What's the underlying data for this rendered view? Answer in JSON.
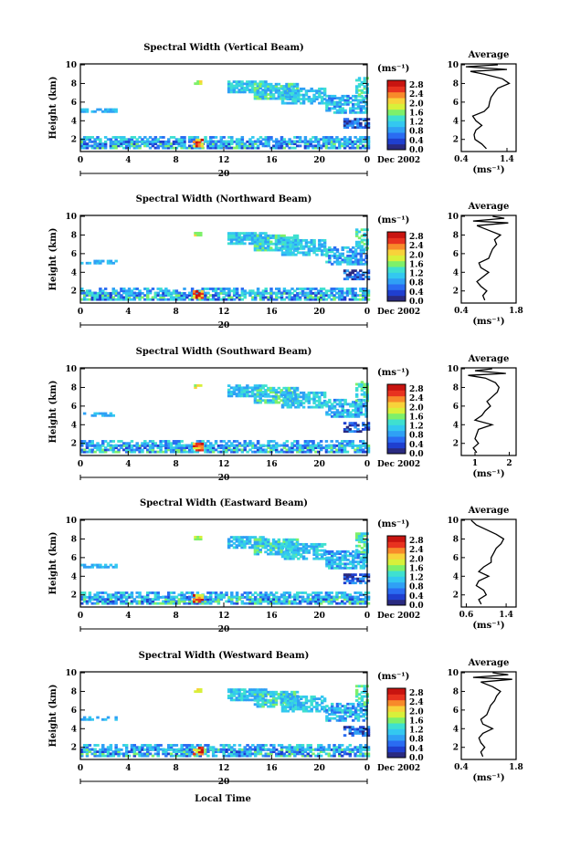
{
  "figure": {
    "xlabel": "Local Time",
    "ylabel": "Height (km)",
    "units_label": "(ms⁻¹)",
    "date_label": "Dec 2002",
    "date_day": "20",
    "avg_title": "Average",
    "avg_xlabel": "(ms⁻¹)"
  },
  "colors": {
    "scale": [
      "#2a2a80",
      "#1f3fcf",
      "#2a6cf2",
      "#2fa0f5",
      "#33c8f0",
      "#3fe0d0",
      "#7ef06a",
      "#d8f03a",
      "#f8d23a",
      "#f88a2a",
      "#e8321f",
      "#c81410"
    ]
  },
  "chart_data": [
    {
      "type": "heatmap",
      "title": "Spectral Width (Vertical Beam)",
      "x_ticks": [
        "0",
        "4",
        "8",
        "12",
        "16",
        "20",
        "0"
      ],
      "xlim": [
        0,
        24
      ],
      "y_ticks": [
        "2",
        "4",
        "6",
        "8",
        "10"
      ],
      "ylim": [
        0.7,
        10.1
      ],
      "colorbar_ticks": [
        "0.0",
        "0.4",
        "0.8",
        "1.2",
        "1.6",
        "2.0",
        "2.4",
        "2.8"
      ],
      "colorbar_range": [
        0.0,
        3.0
      ],
      "average": {
        "title": "Average",
        "x_ticks": [
          "0.4",
          "1.4"
        ],
        "xlim": [
          0.4,
          1.6
        ],
        "profile": [
          [
            1.0,
            0.95
          ],
          [
            1.5,
            0.85
          ],
          [
            2.0,
            0.7
          ],
          [
            2.5,
            0.68
          ],
          [
            3.0,
            0.72
          ],
          [
            3.5,
            0.85
          ],
          [
            4.0,
            0.72
          ],
          [
            4.5,
            0.65
          ],
          [
            5.0,
            0.9
          ],
          [
            5.5,
            1.0
          ],
          [
            6.0,
            1.02
          ],
          [
            6.5,
            1.05
          ],
          [
            7.0,
            1.12
          ],
          [
            7.5,
            1.2
          ],
          [
            8.0,
            1.45
          ],
          [
            8.5,
            1.3
          ],
          [
            9.0,
            0.9
          ],
          [
            9.3,
            0.6
          ],
          [
            9.5,
            1.4
          ],
          [
            9.8,
            0.5
          ],
          [
            10.0,
            1.2
          ]
        ]
      }
    },
    {
      "type": "heatmap",
      "title": "Spectral Width (Northward Beam)",
      "x_ticks": [
        "0",
        "4",
        "8",
        "12",
        "16",
        "20",
        "0"
      ],
      "xlim": [
        0,
        24
      ],
      "y_ticks": [
        "2",
        "4",
        "6",
        "8",
        "10"
      ],
      "ylim": [
        0.7,
        10.1
      ],
      "colorbar_ticks": [
        "0.0",
        "0.4",
        "0.8",
        "1.2",
        "1.6",
        "2.0",
        "2.4",
        "2.8"
      ],
      "colorbar_range": [
        0.0,
        3.0
      ],
      "average": {
        "title": "Average",
        "x_ticks": [
          "0.4",
          "1.8"
        ],
        "xlim": [
          0.4,
          1.8
        ],
        "profile": [
          [
            1.0,
            1.0
          ],
          [
            1.5,
            0.95
          ],
          [
            2.0,
            1.05
          ],
          [
            2.5,
            0.9
          ],
          [
            3.0,
            0.8
          ],
          [
            3.5,
            0.95
          ],
          [
            4.0,
            1.1
          ],
          [
            4.5,
            0.9
          ],
          [
            5.0,
            0.85
          ],
          [
            5.5,
            1.1
          ],
          [
            6.0,
            1.15
          ],
          [
            6.5,
            1.2
          ],
          [
            7.0,
            1.3
          ],
          [
            7.5,
            1.25
          ],
          [
            8.0,
            1.4
          ],
          [
            8.5,
            1.1
          ],
          [
            9.0,
            0.8
          ],
          [
            9.3,
            1.6
          ],
          [
            9.5,
            0.7
          ],
          [
            9.8,
            1.5
          ],
          [
            10.0,
            1.2
          ]
        ]
      }
    },
    {
      "type": "heatmap",
      "title": "Spectral Width (Southward Beam)",
      "x_ticks": [
        "0",
        "4",
        "8",
        "12",
        "16",
        "20",
        "0"
      ],
      "xlim": [
        0,
        24
      ],
      "y_ticks": [
        "2",
        "4",
        "6",
        "8",
        "10"
      ],
      "ylim": [
        0.7,
        10.1
      ],
      "colorbar_ticks": [
        "0.0",
        "0.4",
        "0.8",
        "1.2",
        "1.6",
        "2.0",
        "2.4",
        "2.8"
      ],
      "colorbar_range": [
        0.0,
        3.0
      ],
      "average": {
        "title": "Average",
        "x_ticks": [
          "1",
          "2"
        ],
        "xlim": [
          0.6,
          2.2
        ],
        "profile": [
          [
            1.0,
            1.05
          ],
          [
            1.5,
            0.95
          ],
          [
            2.0,
            1.1
          ],
          [
            2.5,
            1.0
          ],
          [
            3.0,
            1.05
          ],
          [
            3.5,
            1.1
          ],
          [
            4.0,
            1.5
          ],
          [
            4.5,
            1.0
          ],
          [
            5.0,
            1.2
          ],
          [
            5.5,
            1.3
          ],
          [
            6.0,
            1.45
          ],
          [
            6.5,
            1.35
          ],
          [
            7.0,
            1.5
          ],
          [
            7.5,
            1.65
          ],
          [
            8.0,
            1.7
          ],
          [
            8.5,
            1.6
          ],
          [
            9.0,
            1.3
          ],
          [
            9.3,
            0.8
          ],
          [
            9.5,
            1.9
          ],
          [
            9.8,
            1.0
          ],
          [
            10.0,
            1.5
          ]
        ]
      }
    },
    {
      "type": "heatmap",
      "title": "Spectral Width (Eastward Beam)",
      "x_ticks": [
        "0",
        "4",
        "8",
        "12",
        "16",
        "20",
        "0"
      ],
      "xlim": [
        0,
        24
      ],
      "y_ticks": [
        "2",
        "4",
        "6",
        "8",
        "10"
      ],
      "ylim": [
        0.7,
        10.1
      ],
      "colorbar_ticks": [
        "0.0",
        "0.4",
        "0.8",
        "1.2",
        "1.6",
        "2.0",
        "2.4",
        "2.8"
      ],
      "colorbar_range": [
        0.0,
        3.0
      ],
      "average": {
        "title": "Average",
        "x_ticks": [
          "0.6",
          "1.4"
        ],
        "xlim": [
          0.5,
          1.6
        ],
        "profile": [
          [
            1.0,
            0.9
          ],
          [
            1.5,
            0.85
          ],
          [
            2.0,
            1.0
          ],
          [
            2.5,
            0.95
          ],
          [
            3.0,
            0.8
          ],
          [
            3.5,
            0.85
          ],
          [
            4.0,
            1.05
          ],
          [
            4.5,
            0.85
          ],
          [
            5.0,
            0.95
          ],
          [
            5.5,
            1.1
          ],
          [
            6.0,
            1.1
          ],
          [
            6.5,
            1.15
          ],
          [
            7.0,
            1.2
          ],
          [
            7.5,
            1.3
          ],
          [
            8.0,
            1.35
          ],
          [
            8.5,
            1.2
          ],
          [
            9.0,
            1.0
          ],
          [
            9.5,
            0.8
          ],
          [
            10.0,
            0.7
          ]
        ]
      }
    },
    {
      "type": "heatmap",
      "title": "Spectral Width (Westward Beam)",
      "x_ticks": [
        "0",
        "4",
        "8",
        "12",
        "16",
        "20",
        "0"
      ],
      "xlim": [
        0,
        24
      ],
      "y_ticks": [
        "2",
        "4",
        "6",
        "8",
        "10"
      ],
      "ylim": [
        0.7,
        10.1
      ],
      "colorbar_ticks": [
        "0.0",
        "0.4",
        "0.8",
        "1.2",
        "1.6",
        "2.0",
        "2.4",
        "2.8"
      ],
      "colorbar_range": [
        0.0,
        3.0
      ],
      "average": {
        "title": "Average",
        "x_ticks": [
          "0.4",
          "1.8"
        ],
        "xlim": [
          0.4,
          1.8
        ],
        "profile": [
          [
            1.0,
            0.95
          ],
          [
            1.5,
            0.9
          ],
          [
            2.0,
            1.0
          ],
          [
            2.5,
            0.9
          ],
          [
            3.0,
            0.85
          ],
          [
            3.5,
            0.95
          ],
          [
            4.0,
            1.2
          ],
          [
            4.5,
            0.95
          ],
          [
            5.0,
            0.9
          ],
          [
            5.5,
            1.05
          ],
          [
            6.0,
            1.1
          ],
          [
            6.5,
            1.15
          ],
          [
            7.0,
            1.25
          ],
          [
            7.5,
            1.3
          ],
          [
            8.0,
            1.4
          ],
          [
            8.5,
            1.2
          ],
          [
            9.0,
            0.9
          ],
          [
            9.3,
            1.7
          ],
          [
            9.5,
            0.7
          ],
          [
            9.8,
            1.6
          ],
          [
            10.0,
            1.2
          ]
        ]
      }
    }
  ]
}
